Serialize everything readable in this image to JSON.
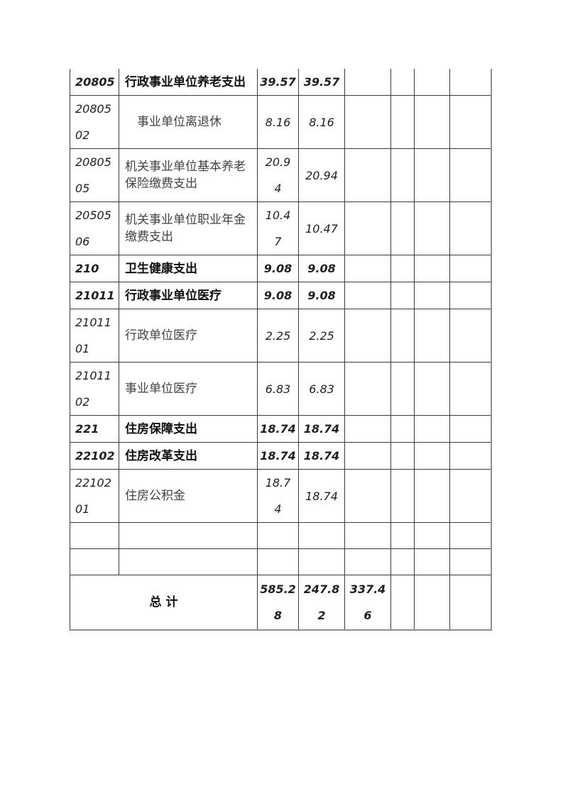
{
  "document": {
    "type": "budget-expenditure-table-continuation",
    "background_color": "#ffffff",
    "border_color": "#3c3c3c"
  },
  "table": {
    "columns": [
      "code",
      "name",
      "amount1",
      "amount2",
      "amount3",
      "extra1",
      "extra2",
      "extra3"
    ],
    "rows": [
      {
        "kind": "category",
        "code": "20805",
        "name": "行政事业单位养老支出",
        "v1": "39.57",
        "v2": "39.57",
        "v3": ""
      },
      {
        "kind": "sub",
        "indent": true,
        "code": "20805\n02",
        "name": "事业单位离退休",
        "v1": "8.16",
        "v2": "8.16",
        "v3": ""
      },
      {
        "kind": "sub",
        "code": "20805\n05",
        "name": "机关事业单位基本养老保险缴费支出",
        "v1": "20.9\n4",
        "v2": "20.94",
        "v3": ""
      },
      {
        "kind": "sub",
        "code": "20505\n06",
        "name": "机关事业单位职业年金缴费支出",
        "v1": "10.4\n7",
        "v2": "10.47",
        "v3": ""
      },
      {
        "kind": "category",
        "code": "210",
        "name": "卫生健康支出",
        "v1": "9.08",
        "v2": "9.08",
        "v3": ""
      },
      {
        "kind": "category",
        "code": "21011",
        "name": "行政事业单位医疗",
        "v1": "9.08",
        "v2": "9.08",
        "v3": ""
      },
      {
        "kind": "sub",
        "code": "21011\n01",
        "name": "行政单位医疗",
        "v1": "2.25",
        "v2": "2.25",
        "v3": ""
      },
      {
        "kind": "sub",
        "code": "21011\n02",
        "name": "事业单位医疗",
        "v1": "6.83",
        "v2": "6.83",
        "v3": ""
      },
      {
        "kind": "category",
        "code": "221",
        "name": "住房保障支出",
        "v1": "18.74",
        "v2": "18.74",
        "v3": ""
      },
      {
        "kind": "category",
        "code": "22102",
        "name": "住房改革支出",
        "v1": "18.74",
        "v2": "18.74",
        "v3": ""
      },
      {
        "kind": "sub",
        "code": "22102\n01",
        "name": "住房公积金",
        "v1": "18.7\n4",
        "v2": "18.74",
        "v3": ""
      },
      {
        "kind": "empty",
        "code": "",
        "name": "",
        "v1": "",
        "v2": "",
        "v3": ""
      },
      {
        "kind": "empty",
        "code": "",
        "name": "",
        "v1": "",
        "v2": "",
        "v3": ""
      },
      {
        "kind": "total",
        "label": "总  计",
        "v1": "585.2\n8",
        "v2": "247.8\n2",
        "v3": "337.4\n6"
      }
    ]
  }
}
